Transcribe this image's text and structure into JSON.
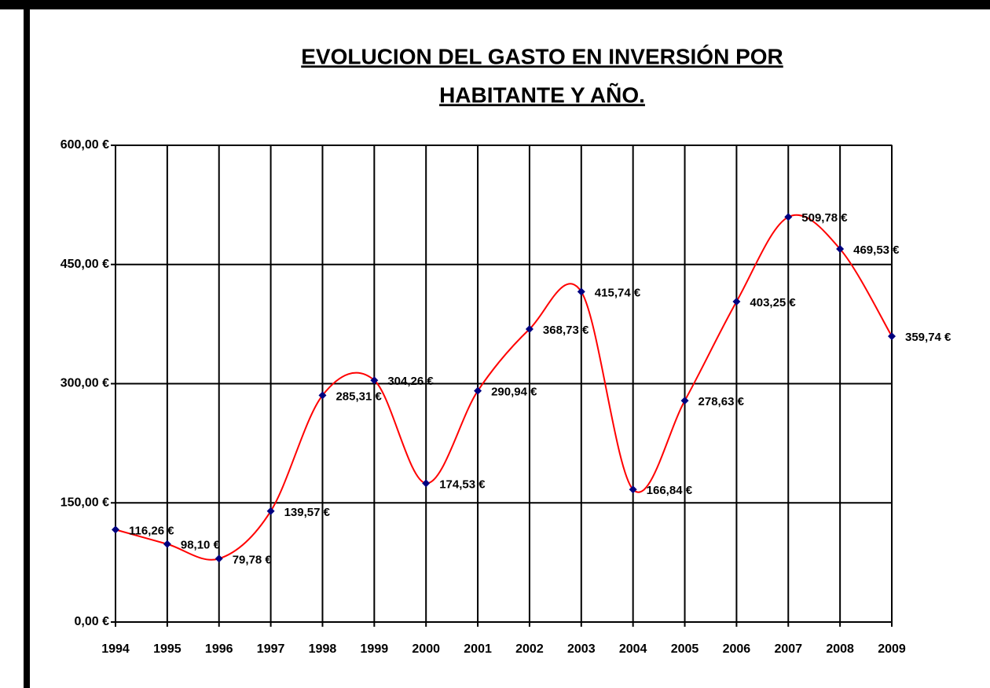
{
  "chart_data": {
    "type": "line",
    "title": [
      "EVOLUCION DEL GASTO EN INVERSIÓN POR",
      "HABITANTE Y AÑO."
    ],
    "categories": [
      "1994",
      "1995",
      "1996",
      "1997",
      "1998",
      "1999",
      "2000",
      "2001",
      "2002",
      "2003",
      "2004",
      "2005",
      "2006",
      "2007",
      "2008",
      "2009"
    ],
    "series": [
      {
        "color": "#ff0000",
        "marker_color": "#000080",
        "values": [
          116.26,
          98.1,
          79.78,
          139.57,
          285.31,
          304.26,
          174.53,
          290.94,
          368.73,
          415.74,
          166.84,
          278.63,
          403.25,
          509.78,
          469.53,
          359.74
        ],
        "value_labels": [
          "116,26 €",
          "98,10 €",
          "79,78 €",
          "139,57 €",
          "285,31 €",
          "304,26 €",
          "174,53 €",
          "290,94 €",
          "368,73 €",
          "415,74 €",
          "166,84 €",
          "278,63 €",
          "403,25 €",
          "509,78 €",
          "469,53 €",
          "359,74 €"
        ]
      }
    ],
    "ylim": [
      0,
      600
    ],
    "yticks": [
      {
        "value": 0,
        "label": "0,00 €"
      },
      {
        "value": 150,
        "label": "150,00 €"
      },
      {
        "value": 300,
        "label": "300,00 €"
      },
      {
        "value": 450,
        "label": "450,00 €"
      },
      {
        "value": 600,
        "label": "600,00 €"
      }
    ],
    "grid": true,
    "smooth": true
  }
}
